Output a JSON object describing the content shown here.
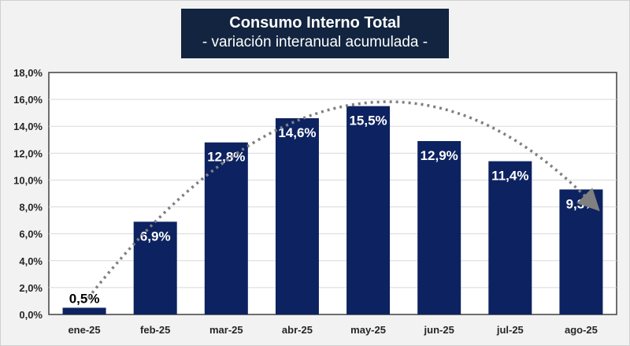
{
  "chart_data": {
    "type": "bar",
    "title": "Consumo Interno Total",
    "subtitle": "- variación interanual acumulada -",
    "categories": [
      "ene-25",
      "feb-25",
      "mar-25",
      "abr-25",
      "may-25",
      "jun-25",
      "jul-25",
      "ago-25"
    ],
    "values": [
      0.5,
      6.9,
      12.8,
      14.6,
      15.5,
      12.9,
      11.4,
      9.3
    ],
    "data_labels": [
      "0,5%",
      "6,9%",
      "12,8%",
      "14,6%",
      "15,5%",
      "12,9%",
      "11,4%",
      "9,3%"
    ],
    "ylim": [
      0,
      18
    ],
    "yticks": [
      0,
      2,
      4,
      6,
      8,
      10,
      12,
      14,
      16,
      18
    ],
    "ytick_labels": [
      "0,0%",
      "2,0%",
      "4,0%",
      "6,0%",
      "8,0%",
      "10,0%",
      "12,0%",
      "14,0%",
      "16,0%",
      "18,0%"
    ],
    "xlabel": "",
    "ylabel": "",
    "grid": true,
    "trendline": "dotted curved arrow",
    "colors": {
      "bar": "#0d2260",
      "trend": "#808080",
      "title_bg": "#12243f"
    }
  }
}
